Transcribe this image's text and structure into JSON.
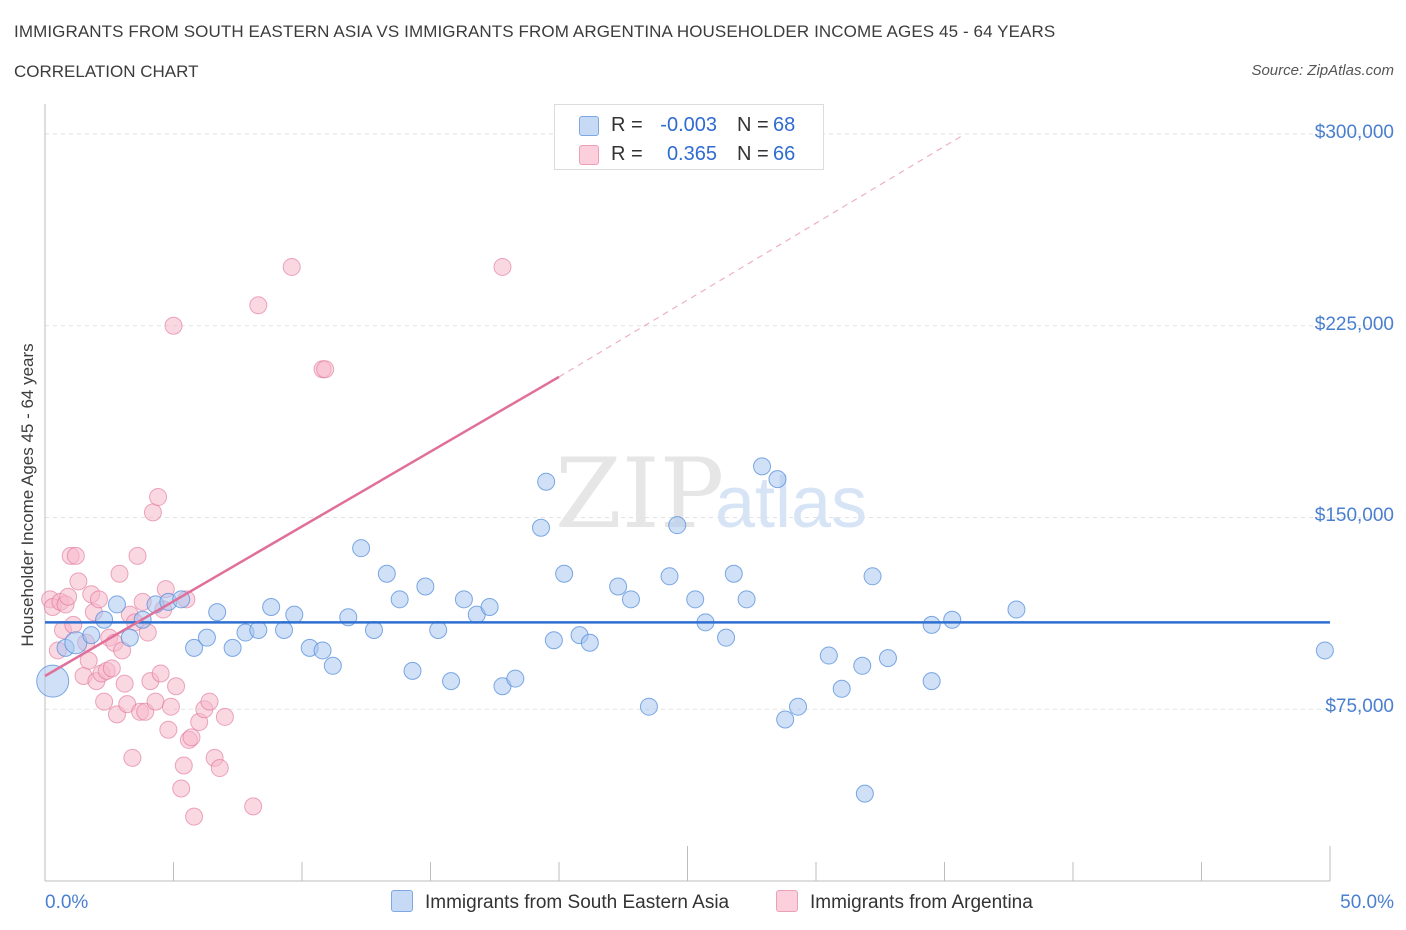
{
  "header": {
    "title": "IMMIGRANTS FROM SOUTH EASTERN ASIA VS IMMIGRANTS FROM ARGENTINA HOUSEHOLDER INCOME AGES 45 - 64 YEARS",
    "subtitle": "CORRELATION CHART",
    "source": "Source: ZipAtlas.com"
  },
  "watermark": {
    "zip": "ZIP",
    "atlas": "atlas"
  },
  "legend_top": {
    "rows": [
      {
        "r_label": "R =",
        "r_value": "-0.003",
        "n_label": "N =",
        "n_value": "68",
        "color": "#a9c6f0"
      },
      {
        "r_label": "R =",
        "r_value": "0.365",
        "n_label": "N =",
        "n_value": "66",
        "color": "#f5b8cb"
      }
    ]
  },
  "legend_bottom": {
    "series_1": "Immigrants from South Eastern Asia",
    "series_2": "Immigrants from Argentina"
  },
  "chart_data": {
    "type": "scatter",
    "xlabel": "",
    "ylabel": "Householder Income Ages 45 - 64 years",
    "xlim": [
      0,
      50
    ],
    "ylim": [
      0,
      300000
    ],
    "x_tick_labels": [
      "0.0%",
      "50.0%"
    ],
    "y_ticks": [
      75000,
      150000,
      225000,
      300000
    ],
    "y_tick_labels": [
      "$75,000",
      "$150,000",
      "$225,000",
      "$300,000"
    ],
    "grid": true,
    "colors": {
      "series_1": "#4a88d9",
      "series_1_fill": "#a9c6f0",
      "series_2": "#e07098",
      "series_2_fill": "#f5b8cb"
    },
    "series": [
      {
        "name": "Immigrants from South Eastern Asia",
        "r": -0.003,
        "n": 68,
        "trend": {
          "x": [
            0,
            50
          ],
          "y": [
            109000,
            109000
          ]
        },
        "points": [
          [
            0.3,
            86000
          ],
          [
            0.8,
            99000
          ],
          [
            1.2,
            101000
          ],
          [
            1.8,
            104000
          ],
          [
            2.3,
            110000
          ],
          [
            2.8,
            116000
          ],
          [
            3.3,
            103000
          ],
          [
            3.8,
            110000
          ],
          [
            4.3,
            116000
          ],
          [
            4.8,
            117000
          ],
          [
            5.3,
            118000
          ],
          [
            5.8,
            99000
          ],
          [
            6.3,
            103000
          ],
          [
            6.7,
            113000
          ],
          [
            7.3,
            99000
          ],
          [
            7.8,
            105000
          ],
          [
            8.3,
            106000
          ],
          [
            8.8,
            115000
          ],
          [
            9.3,
            106000
          ],
          [
            9.7,
            112000
          ],
          [
            10.3,
            99000
          ],
          [
            10.8,
            98000
          ],
          [
            11.2,
            92000
          ],
          [
            11.8,
            111000
          ],
          [
            12.3,
            138000
          ],
          [
            12.8,
            106000
          ],
          [
            13.3,
            128000
          ],
          [
            13.8,
            118000
          ],
          [
            14.3,
            90000
          ],
          [
            14.8,
            123000
          ],
          [
            15.3,
            106000
          ],
          [
            15.8,
            86000
          ],
          [
            16.3,
            118000
          ],
          [
            16.8,
            112000
          ],
          [
            17.3,
            115000
          ],
          [
            17.8,
            84000
          ],
          [
            18.3,
            87000
          ],
          [
            19.3,
            146000
          ],
          [
            19.5,
            164000
          ],
          [
            19.8,
            102000
          ],
          [
            20.2,
            128000
          ],
          [
            20.8,
            104000
          ],
          [
            21.2,
            101000
          ],
          [
            22.3,
            123000
          ],
          [
            22.8,
            118000
          ],
          [
            23.5,
            76000
          ],
          [
            24.3,
            127000
          ],
          [
            24.6,
            147000
          ],
          [
            25.3,
            118000
          ],
          [
            25.7,
            109000
          ],
          [
            26.5,
            103000
          ],
          [
            26.8,
            128000
          ],
          [
            27.3,
            118000
          ],
          [
            27.9,
            170000
          ],
          [
            28.5,
            165000
          ],
          [
            28.8,
            71000
          ],
          [
            29.3,
            76000
          ],
          [
            30.5,
            96000
          ],
          [
            31.0,
            83000
          ],
          [
            31.8,
            92000
          ],
          [
            32.2,
            127000
          ],
          [
            31.9,
            42000
          ],
          [
            32.8,
            95000
          ],
          [
            34.5,
            108000
          ],
          [
            35.3,
            110000
          ],
          [
            37.8,
            114000
          ],
          [
            34.5,
            86000
          ],
          [
            49.8,
            98000
          ]
        ]
      },
      {
        "name": "Immigrants from Argentina",
        "r": 0.365,
        "n": 66,
        "trend": {
          "x": [
            0,
            20
          ],
          "y": [
            88000,
            205000
          ]
        },
        "trend_dashed": {
          "x": [
            20,
            35.8
          ],
          "y": [
            205000,
            300000
          ]
        },
        "points": [
          [
            0.2,
            118000
          ],
          [
            0.3,
            115000
          ],
          [
            0.5,
            98000
          ],
          [
            0.6,
            117000
          ],
          [
            0.7,
            106000
          ],
          [
            0.8,
            116000
          ],
          [
            0.9,
            119000
          ],
          [
            1.0,
            135000
          ],
          [
            1.1,
            108000
          ],
          [
            1.2,
            135000
          ],
          [
            1.3,
            125000
          ],
          [
            1.5,
            88000
          ],
          [
            1.6,
            101000
          ],
          [
            1.7,
            94000
          ],
          [
            1.8,
            120000
          ],
          [
            1.9,
            113000
          ],
          [
            2.0,
            86000
          ],
          [
            2.1,
            118000
          ],
          [
            2.2,
            89000
          ],
          [
            2.3,
            78000
          ],
          [
            2.4,
            90000
          ],
          [
            2.5,
            103000
          ],
          [
            2.6,
            91000
          ],
          [
            2.7,
            101000
          ],
          [
            2.8,
            73000
          ],
          [
            2.9,
            128000
          ],
          [
            3.0,
            98000
          ],
          [
            3.1,
            85000
          ],
          [
            3.2,
            77000
          ],
          [
            3.3,
            112000
          ],
          [
            3.4,
            56000
          ],
          [
            3.5,
            109000
          ],
          [
            3.6,
            135000
          ],
          [
            3.7,
            74000
          ],
          [
            3.8,
            117000
          ],
          [
            3.9,
            74000
          ],
          [
            4.0,
            105000
          ],
          [
            4.1,
            86000
          ],
          [
            4.2,
            152000
          ],
          [
            4.3,
            78000
          ],
          [
            4.4,
            158000
          ],
          [
            4.5,
            89000
          ],
          [
            4.6,
            114000
          ],
          [
            4.7,
            122000
          ],
          [
            4.8,
            67000
          ],
          [
            4.9,
            76000
          ],
          [
            5.0,
            225000
          ],
          [
            5.1,
            84000
          ],
          [
            5.3,
            44000
          ],
          [
            5.4,
            53000
          ],
          [
            5.5,
            118000
          ],
          [
            5.6,
            63000
          ],
          [
            5.7,
            64000
          ],
          [
            5.8,
            33000
          ],
          [
            6.0,
            70000
          ],
          [
            6.2,
            75000
          ],
          [
            6.4,
            78000
          ],
          [
            6.6,
            56000
          ],
          [
            6.8,
            52000
          ],
          [
            7.0,
            72000
          ],
          [
            8.1,
            37000
          ],
          [
            8.3,
            233000
          ],
          [
            9.6,
            248000
          ],
          [
            10.8,
            208000
          ],
          [
            10.9,
            208000
          ],
          [
            17.8,
            248000
          ]
        ]
      }
    ]
  }
}
